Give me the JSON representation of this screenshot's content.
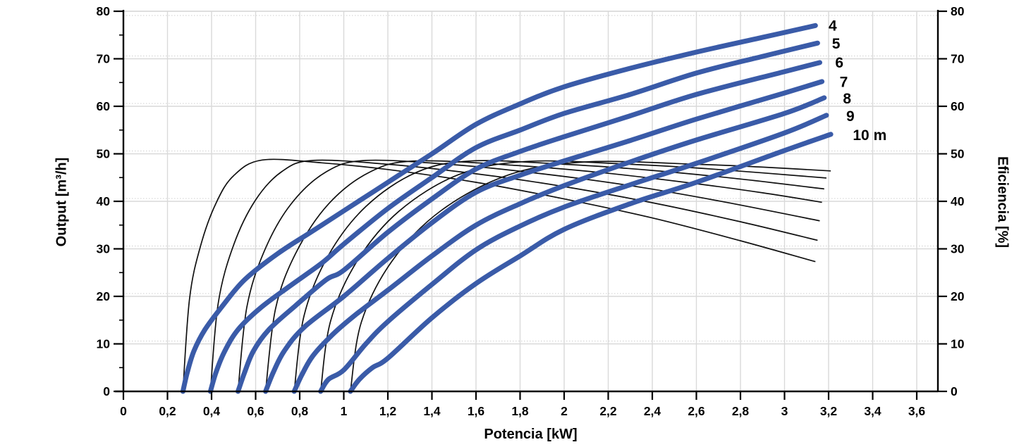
{
  "chart_data": {
    "type": "line",
    "title": "",
    "xlabel": "Potencia [kW]",
    "ylabel_left": "Output [m³/h]",
    "ylabel_right": "Eficiencia [%]",
    "xlim": [
      0,
      3.7
    ],
    "ylim_left": [
      0,
      80
    ],
    "ylim_right": [
      0,
      80
    ],
    "x_ticks": [
      0,
      0.2,
      0.4,
      0.6,
      0.8,
      1,
      1.2,
      1.4,
      1.6,
      1.8,
      2,
      2.2,
      2.4,
      2.6,
      2.8,
      3,
      3.2,
      3.4,
      3.6
    ],
    "x_tick_labels": [
      "0",
      "0,2",
      "0,4",
      "0,6",
      "0,8",
      "1",
      "1,2",
      "1,4",
      "1,6",
      "1,8",
      "2",
      "2,2",
      "2,4",
      "2,6",
      "2,8",
      "3",
      "3,2",
      "3,4",
      "3,6"
    ],
    "y_ticks": [
      0,
      10,
      20,
      30,
      40,
      50,
      60,
      70,
      80
    ],
    "y_tick_labels": [
      "0",
      "10",
      "20",
      "30",
      "40",
      "50",
      "60",
      "70",
      "80"
    ],
    "y_minor_step": 5,
    "grid": {
      "vertical": "solid",
      "horizontal": "solid",
      "right_axis_grid": "dotted"
    },
    "colors": {
      "output_curve": "#3a5ba8",
      "efficiency_curve": "#111111",
      "grid_solid": "#d9d9d9",
      "grid_dotted": "#cfcfcf",
      "axis": "#000000"
    },
    "series": [
      {
        "head": "4",
        "label": {
          "text": "4",
          "x": 3.2,
          "y": 77.0
        },
        "output_points": [
          [
            0.27,
            0
          ],
          [
            0.29,
            4
          ],
          [
            0.32,
            8.5
          ],
          [
            0.37,
            13
          ],
          [
            0.45,
            18
          ],
          [
            0.55,
            23.5
          ],
          [
            0.7,
            29
          ],
          [
            0.85,
            33.5
          ],
          [
            1.0,
            38
          ],
          [
            1.2,
            44
          ],
          [
            1.4,
            50
          ],
          [
            1.6,
            56.2
          ],
          [
            1.8,
            60.5
          ],
          [
            2.0,
            64.1
          ],
          [
            2.3,
            68
          ],
          [
            2.6,
            71.4
          ],
          [
            2.9,
            74.5
          ],
          [
            3.14,
            77
          ]
        ],
        "efficiency_points": [
          [
            0.27,
            0
          ],
          [
            0.3,
            19.5
          ],
          [
            0.35,
            30.6
          ],
          [
            0.42,
            39.6
          ],
          [
            0.5,
            45.4
          ],
          [
            0.63,
            48.7
          ],
          [
            0.9,
            48.1
          ],
          [
            1.2,
            46.7
          ],
          [
            1.6,
            44.0
          ],
          [
            2.0,
            40.5
          ],
          [
            2.4,
            36.5
          ],
          [
            2.8,
            31.7
          ],
          [
            3.14,
            27.3
          ]
        ]
      },
      {
        "head": "5",
        "label": {
          "text": "5",
          "x": 3.215,
          "y": 73.2
        },
        "output_points": [
          [
            0.395,
            0
          ],
          [
            0.42,
            4
          ],
          [
            0.46,
            8.5
          ],
          [
            0.52,
            13
          ],
          [
            0.62,
            17.5
          ],
          [
            0.75,
            22
          ],
          [
            0.9,
            27
          ],
          [
            1.0,
            31
          ],
          [
            1.2,
            38.5
          ],
          [
            1.4,
            45
          ],
          [
            1.6,
            51.3
          ],
          [
            1.8,
            55
          ],
          [
            2.0,
            58.5
          ],
          [
            2.3,
            62.5
          ],
          [
            2.6,
            67
          ],
          [
            2.9,
            70.5
          ],
          [
            3.15,
            73.3
          ]
        ],
        "efficiency_points": [
          [
            0.395,
            0
          ],
          [
            0.43,
            18.5
          ],
          [
            0.5,
            30.8
          ],
          [
            0.6,
            40.3
          ],
          [
            0.72,
            46.3
          ],
          [
            0.86,
            48.6
          ],
          [
            1.2,
            47.8
          ],
          [
            1.6,
            45.8
          ],
          [
            2.0,
            43.1
          ],
          [
            2.4,
            39.7
          ],
          [
            2.8,
            35.7
          ],
          [
            3.15,
            31.8
          ]
        ]
      },
      {
        "head": "6",
        "label": {
          "text": "6",
          "x": 3.23,
          "y": 69.2
        },
        "output_points": [
          [
            0.52,
            0
          ],
          [
            0.55,
            4
          ],
          [
            0.59,
            8.5
          ],
          [
            0.66,
            13
          ],
          [
            0.78,
            18
          ],
          [
            0.92,
            23.5
          ],
          [
            1.0,
            25.5
          ],
          [
            1.2,
            33.5
          ],
          [
            1.4,
            40.5
          ],
          [
            1.6,
            46.8
          ],
          [
            1.8,
            50.5
          ],
          [
            2.0,
            53.6
          ],
          [
            2.3,
            58
          ],
          [
            2.6,
            62.5
          ],
          [
            3.0,
            67.3
          ],
          [
            3.16,
            69.2
          ]
        ],
        "efficiency_points": [
          [
            0.52,
            0
          ],
          [
            0.56,
            17.7
          ],
          [
            0.64,
            29.6
          ],
          [
            0.76,
            39.4
          ],
          [
            0.92,
            46.2
          ],
          [
            1.1,
            48.6
          ],
          [
            1.5,
            47.7
          ],
          [
            1.9,
            45.8
          ],
          [
            2.3,
            43.3
          ],
          [
            2.7,
            40.1
          ],
          [
            3.16,
            35.9
          ]
        ]
      },
      {
        "head": "7",
        "label": {
          "text": "7",
          "x": 3.25,
          "y": 65.1
        },
        "output_points": [
          [
            0.645,
            0
          ],
          [
            0.68,
            4
          ],
          [
            0.73,
            8.5
          ],
          [
            0.82,
            13.5
          ],
          [
            1.0,
            20
          ],
          [
            1.2,
            28
          ],
          [
            1.4,
            35.5
          ],
          [
            1.6,
            41.9
          ],
          [
            1.8,
            45.5
          ],
          [
            2.0,
            48.5
          ],
          [
            2.3,
            52.8
          ],
          [
            2.6,
            57.3
          ],
          [
            3.0,
            62.8
          ],
          [
            3.17,
            65.2
          ]
        ],
        "efficiency_points": [
          [
            0.645,
            0
          ],
          [
            0.69,
            17.3
          ],
          [
            0.78,
            28.9
          ],
          [
            0.93,
            39.4
          ],
          [
            1.12,
            46.2
          ],
          [
            1.33,
            48.5
          ],
          [
            1.8,
            47.5
          ],
          [
            2.2,
            45.9
          ],
          [
            2.6,
            43.7
          ],
          [
            2.9,
            41.8
          ],
          [
            3.17,
            39.8
          ]
        ]
      },
      {
        "head": "8",
        "label": {
          "text": "8",
          "x": 3.265,
          "y": 61.6
        },
        "output_points": [
          [
            0.775,
            0
          ],
          [
            0.81,
            3.5
          ],
          [
            0.86,
            7.5
          ],
          [
            0.95,
            12
          ],
          [
            1.05,
            16
          ],
          [
            1.2,
            21.3
          ],
          [
            1.4,
            28.5
          ],
          [
            1.6,
            35
          ],
          [
            1.8,
            39.5
          ],
          [
            2.0,
            43.3
          ],
          [
            2.3,
            48.3
          ],
          [
            2.6,
            52.9
          ],
          [
            3.0,
            58.5
          ],
          [
            3.18,
            61.8
          ]
        ],
        "efficiency_points": [
          [
            0.775,
            0
          ],
          [
            0.82,
            16.0
          ],
          [
            0.93,
            28.6
          ],
          [
            1.1,
            38.9
          ],
          [
            1.33,
            46.1
          ],
          [
            1.58,
            48.5
          ],
          [
            2.0,
            47.8
          ],
          [
            2.4,
            46.5
          ],
          [
            2.8,
            44.7
          ],
          [
            3.18,
            42.6
          ]
        ]
      },
      {
        "head": "9",
        "label": {
          "text": "9",
          "x": 3.28,
          "y": 57.9
        },
        "output_points": [
          [
            0.895,
            0
          ],
          [
            0.93,
            2.5
          ],
          [
            1.0,
            4.5
          ],
          [
            1.1,
            10
          ],
          [
            1.2,
            14.7
          ],
          [
            1.4,
            22.5
          ],
          [
            1.6,
            29.8
          ],
          [
            1.8,
            34.8
          ],
          [
            2.0,
            38.8
          ],
          [
            2.3,
            43.5
          ],
          [
            2.6,
            48
          ],
          [
            3.0,
            54.4
          ],
          [
            3.19,
            58.1
          ]
        ],
        "efficiency_points": [
          [
            0.895,
            0
          ],
          [
            0.94,
            14.8
          ],
          [
            1.06,
            27.4
          ],
          [
            1.25,
            37.9
          ],
          [
            1.52,
            45.6
          ],
          [
            1.83,
            48.4
          ],
          [
            2.3,
            47.8
          ],
          [
            2.7,
            46.7
          ],
          [
            3.19,
            44.9
          ]
        ]
      },
      {
        "head": "10",
        "label": {
          "text": "10 m",
          "x": 3.31,
          "y": 53.9
        },
        "output_points": [
          [
            1.03,
            0
          ],
          [
            1.07,
            2.5
          ],
          [
            1.13,
            5
          ],
          [
            1.2,
            7
          ],
          [
            1.4,
            15.5
          ],
          [
            1.6,
            22.7
          ],
          [
            1.8,
            28.5
          ],
          [
            2.0,
            34.1
          ],
          [
            2.3,
            39.5
          ],
          [
            2.6,
            44
          ],
          [
            3.0,
            50.7
          ],
          [
            3.21,
            54.1
          ]
        ],
        "efficiency_points": [
          [
            1.03,
            0
          ],
          [
            1.08,
            14.6
          ],
          [
            1.22,
            27.5
          ],
          [
            1.44,
            38.0
          ],
          [
            1.75,
            45.6
          ],
          [
            2.1,
            48.3
          ],
          [
            2.6,
            47.8
          ],
          [
            2.9,
            47.2
          ],
          [
            3.21,
            46.4
          ]
        ]
      }
    ]
  }
}
